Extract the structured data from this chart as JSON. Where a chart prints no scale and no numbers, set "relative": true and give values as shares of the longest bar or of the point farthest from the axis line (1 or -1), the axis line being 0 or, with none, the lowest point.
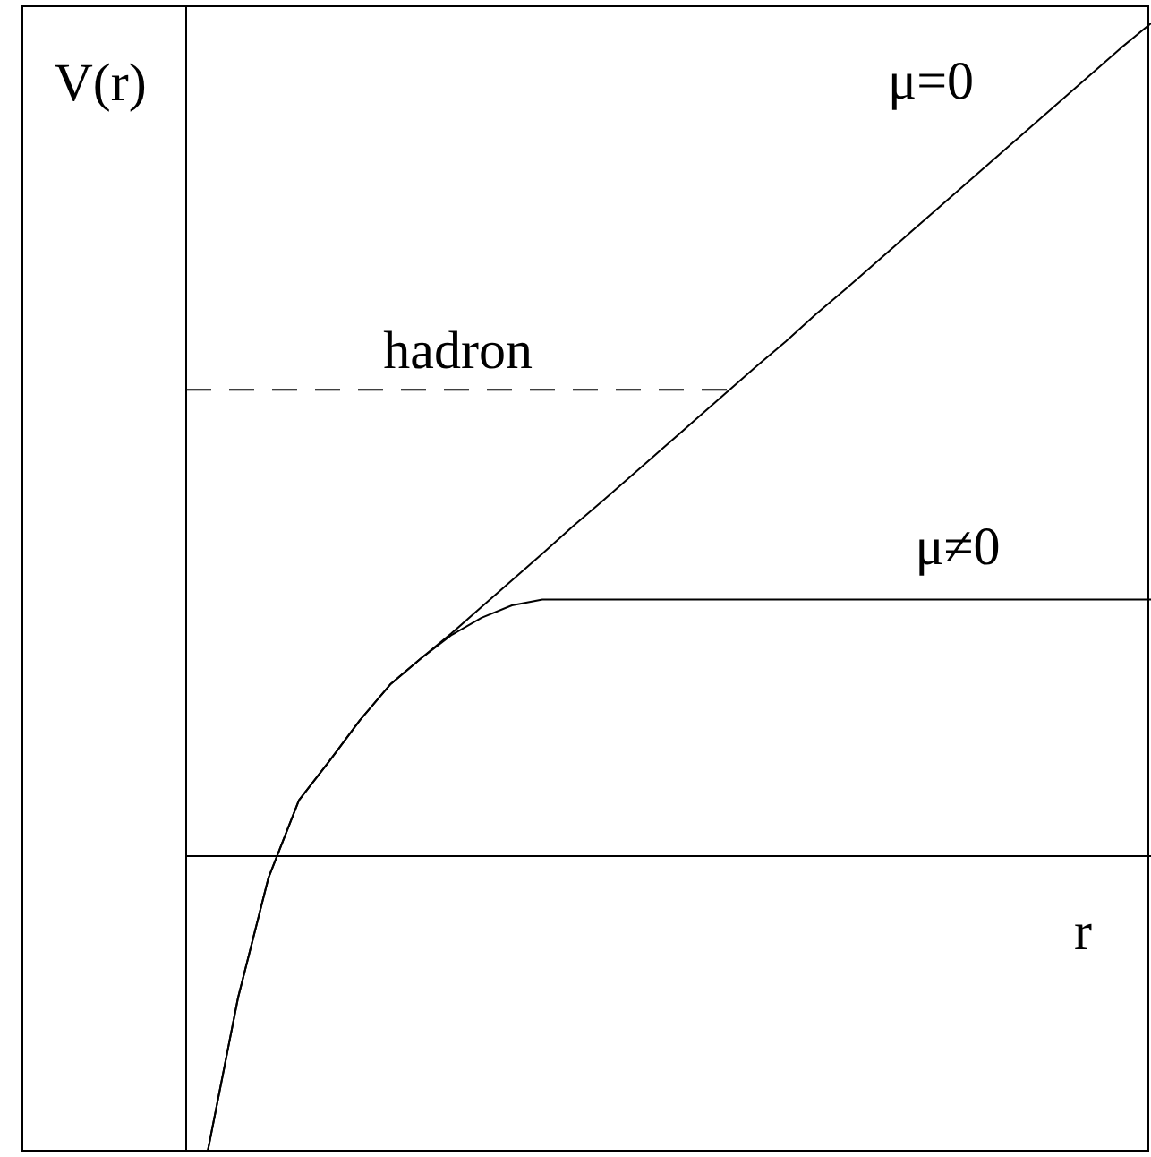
{
  "chart_data": {
    "type": "line",
    "relative": true,
    "xlabel": "r",
    "ylabel": "V(r)",
    "categories": [
      null,
      null,
      null,
      null,
      null,
      null,
      null,
      null,
      null,
      null,
      null,
      null,
      null,
      null,
      null,
      null,
      null,
      null,
      null,
      null,
      null,
      null,
      null,
      null,
      null,
      null,
      null,
      null,
      null,
      null,
      null,
      null
    ],
    "series": [
      {
        "name": "μ=0",
        "color": "#000000",
        "values": [
          -0.355,
          -0.17,
          -0.026,
          0.067,
          0.114,
          0.163,
          0.206,
          0.237,
          0.267,
          0.299,
          0.331,
          0.363,
          0.396,
          0.427,
          0.459,
          0.491,
          0.523,
          0.555,
          0.587,
          0.618,
          0.651,
          0.682,
          0.714,
          0.746,
          0.778,
          0.81,
          0.842,
          0.874,
          0.906,
          0.938,
          0.97,
          1
        ]
      },
      {
        "name": "μ≠0",
        "color": "#000000",
        "values": [
          -0.355,
          -0.17,
          -0.026,
          0.067,
          0.114,
          0.163,
          0.206,
          0.237,
          0.265,
          0.286,
          0.301,
          0.308,
          0.308,
          0.308,
          0.308,
          0.308,
          0.308,
          0.308,
          0.308,
          0.308,
          0.308,
          0.308,
          0.308,
          0.308,
          0.308,
          0.308,
          0.308,
          0.308,
          0.308,
          0.308,
          0.308,
          0.308
        ]
      }
    ],
    "ref_lines": [
      {
        "axis": "y",
        "value": 0.56,
        "label": "hadron",
        "line_style": "dashed",
        "color": "#000000"
      }
    ],
    "legend": false,
    "marker": "none",
    "line_style": "solid"
  }
}
